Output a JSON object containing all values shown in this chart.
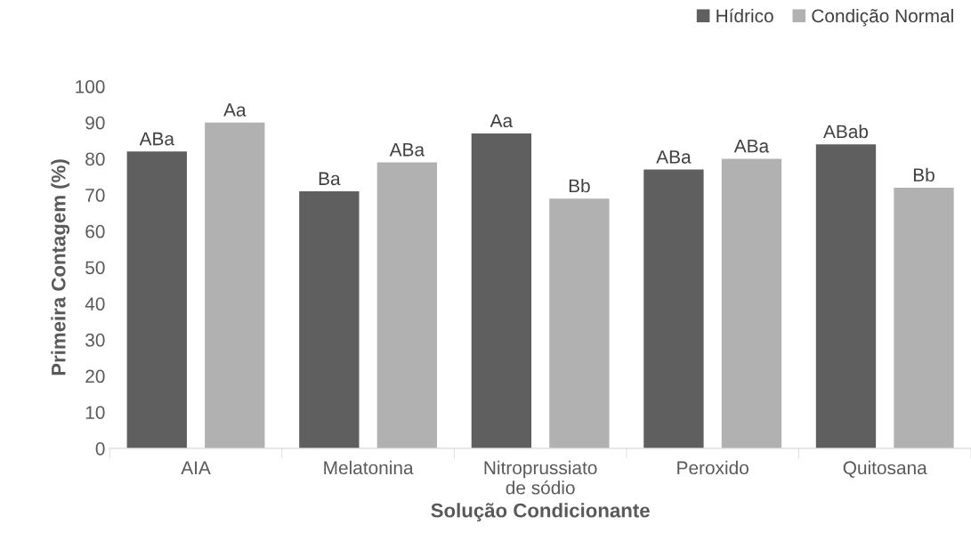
{
  "chart_data": {
    "type": "bar",
    "xlabel": "Solução Condicionante",
    "ylabel": "Primeira Contagem (%)",
    "categories": [
      "AIA",
      "Melatonina",
      "Nitroprussiato\nde sódio",
      "Peroxido",
      "Quitosana"
    ],
    "series": [
      {
        "name": "Hídrico",
        "color": "#5f5f5f",
        "values": [
          82,
          71,
          87,
          77,
          84
        ],
        "value_labels": [
          "ABa",
          "Ba",
          "Aa",
          "ABa",
          "ABab"
        ]
      },
      {
        "name": "Condição Normal",
        "color": "#b1b1b1",
        "values": [
          90,
          79,
          69,
          80,
          72
        ],
        "value_labels": [
          "Aa",
          "ABa",
          "Bb",
          "ABa",
          "Bb"
        ]
      }
    ],
    "ylim": [
      0,
      100
    ],
    "yticks": [
      0,
      10,
      20,
      30,
      40,
      50,
      60,
      70,
      80,
      90,
      100
    ],
    "grid": false,
    "legend": "top right"
  }
}
